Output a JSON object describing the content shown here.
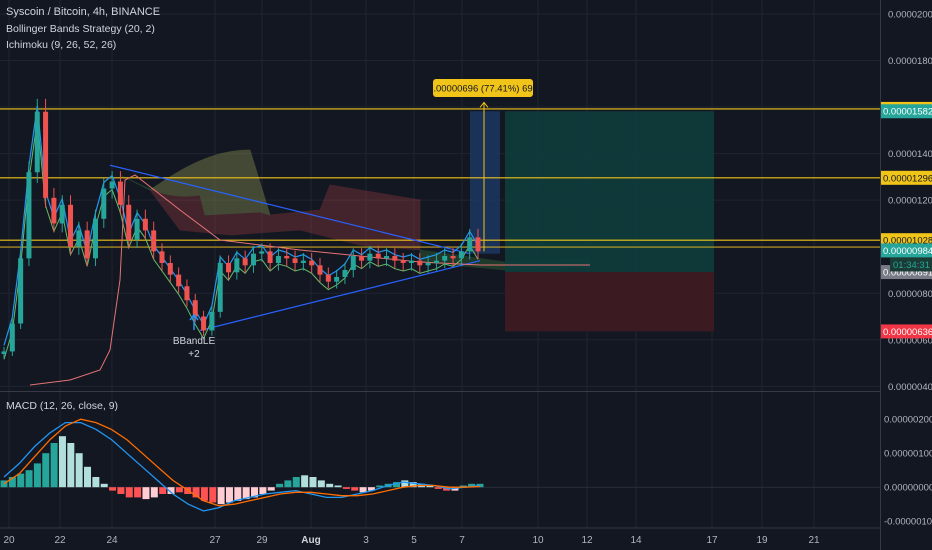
{
  "header": {
    "symbol": "Syscoin / Bitcoin, 4h, BINANCE",
    "indicator1": "Bollinger Bands Strategy (20, 2)",
    "indicator2": "Ichimoku (9, 26, 52, 26)",
    "indicator3": "MACD (12, 26, close, 9)"
  },
  "annotations": {
    "measure_label": "0.00000696 (77.41%) 696",
    "signal_label": "BBandLE",
    "signal_count": "+2",
    "countdown": "01:34:31"
  },
  "colors": {
    "up": "#26a69a",
    "down": "#ef5350",
    "ma_blue": "#2962ff",
    "ichimoku_green": "#43a047",
    "ichimoku_red": "#ef5350",
    "level_yellow": "#f0c419",
    "macd_blue": "#2196f3",
    "signal_orange": "#ff6d00"
  },
  "chart_data": [
    {
      "type": "line",
      "subtype": "candlestick",
      "x": [
        "20",
        "22",
        "24",
        "27",
        "29",
        "Aug",
        "3",
        "5",
        "7",
        "10",
        "12",
        "14",
        "17",
        "19",
        "21"
      ],
      "y_ticks": [
        "0.00000400",
        "0.00000600",
        "0.00000800",
        "0.00001000",
        "0.00001200",
        "0.00001400",
        "0.00001600",
        "0.00001800",
        "0.00002000"
      ],
      "ylim": [
        3.8e-06,
        2.06e-05
      ],
      "horizontal_levels": [
        1.592e-05,
        1.296e-05,
        1.028e-05
      ],
      "price_labels": [
        {
          "text": "0.00001592",
          "value": 1.592e-05,
          "kind": "level"
        },
        {
          "text": "0.00001582",
          "value": 1.582e-05,
          "kind": "target"
        },
        {
          "text": "0.00001296",
          "value": 1.296e-05,
          "kind": "level"
        },
        {
          "text": "0.00001028",
          "value": 1.028e-05,
          "kind": "level"
        },
        {
          "text": "0.00000984",
          "value": 9.84e-06,
          "kind": "last"
        },
        {
          "text": "0.00000891",
          "value": 8.91e-06,
          "kind": "entry"
        },
        {
          "text": "0.00000636",
          "value": 6.36e-06,
          "kind": "stop"
        }
      ],
      "close_series": [
        5.5e-06,
        6.7e-06,
        9.5e-06,
        1.32e-05,
        1.58e-05,
        1.21e-05,
        1.1e-05,
        1.18e-05,
        1e-05,
        1.07e-05,
        9.5e-06,
        1.12e-05,
        1.25e-05,
        1.28e-05,
        1.18e-05,
        1.03e-05,
        1.12e-05,
        1.07e-05,
        9.8e-06,
        9.3e-06,
        8.8e-06,
        8.3e-06,
        7.7e-06,
        7e-06,
        6.4e-06,
        7.2e-06,
        9.3e-06,
        8.9e-06,
        9.5e-06,
        9.2e-06,
        9.7e-06,
        9.8e-06,
        9.3e-06,
        9.6e-06,
        9.5e-06,
        9.3e-06,
        9.4e-06,
        9.2e-06,
        8.8e-06,
        8.5e-06,
        8.7e-06,
        9e-06,
        9.6e-06,
        9.4e-06,
        9.7e-06,
        9.5e-06,
        9.6e-06,
        9.4e-06,
        9.3e-06,
        9.4e-06,
        9.2e-06,
        9.3e-06,
        9.4e-06,
        9.6e-06,
        9.5e-06,
        9.8e-06,
        1.04e-05,
        9.8e-06
      ],
      "long_position": {
        "entry": 8.91e-06,
        "target": 1.582e-05,
        "stop": 6.36e-06
      }
    },
    {
      "type": "bar",
      "subtype": "macd_histogram",
      "y_ticks": [
        "-0.00000100",
        "0.00000000",
        "0.00000100",
        "0.00000200"
      ],
      "ylim": [
        -1.2e-06,
        2.8e-06
      ],
      "histogram": [
        0.2,
        0.3,
        0.4,
        0.5,
        0.7,
        1.0,
        1.3,
        1.5,
        1.3,
        1.0,
        0.6,
        0.3,
        0.1,
        -0.1,
        -0.2,
        -0.3,
        -0.3,
        -0.35,
        -0.3,
        -0.2,
        -0.2,
        -0.15,
        -0.2,
        -0.3,
        -0.4,
        -0.45,
        -0.5,
        -0.45,
        -0.4,
        -0.35,
        -0.3,
        -0.2,
        -0.1,
        0.1,
        0.2,
        0.3,
        0.35,
        0.3,
        0.2,
        0.1,
        0.05,
        -0.05,
        -0.1,
        -0.15,
        -0.1,
        0.05,
        0.1,
        0.15,
        0.2,
        0.15,
        0.1,
        0.05,
        -0.05,
        -0.1,
        -0.1,
        0.05,
        0.1,
        0.1
      ]
    }
  ]
}
